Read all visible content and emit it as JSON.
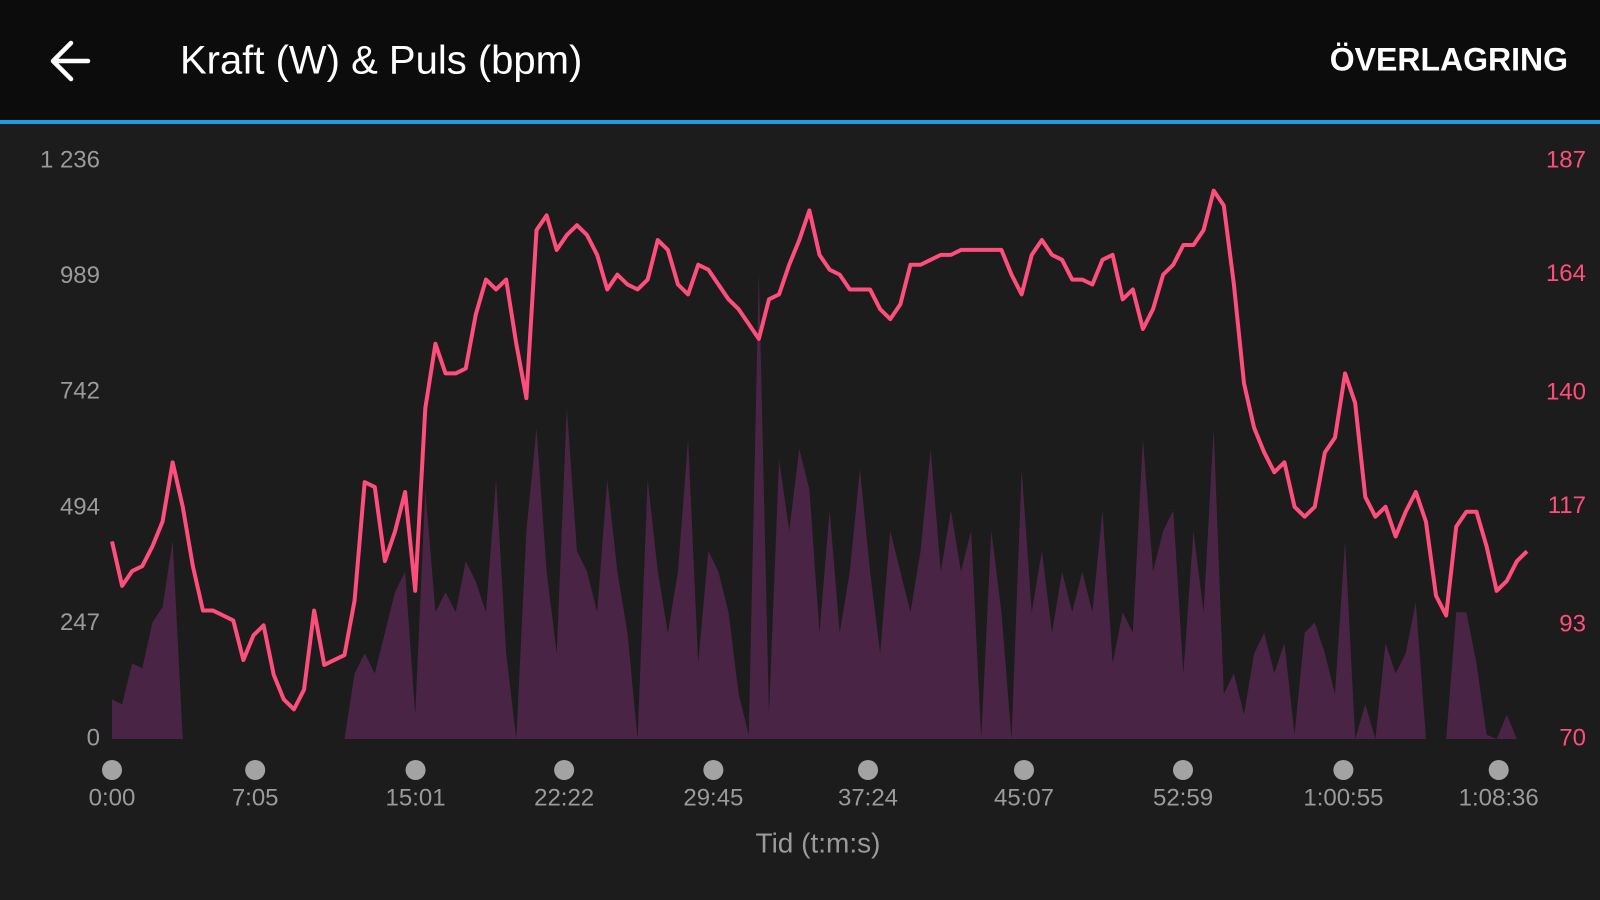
{
  "header": {
    "title": "Kraft (W) & Puls (bpm)",
    "action": "ÖVERLAGRING"
  },
  "chart_data": {
    "type": "line",
    "x_label": "Tid (t:m:s)",
    "x": [
      0,
      30,
      60,
      90,
      120,
      150,
      180,
      210,
      240,
      270,
      300,
      330,
      360,
      390,
      420,
      450,
      480,
      510,
      540,
      570,
      600,
      630,
      660,
      690,
      720,
      750,
      780,
      810,
      840,
      870,
      900,
      930,
      960,
      990,
      1020,
      1050,
      1080,
      1110,
      1140,
      1170,
      1200,
      1230,
      1260,
      1290,
      1320,
      1350,
      1380,
      1410,
      1440,
      1470,
      1500,
      1530,
      1560,
      1590,
      1620,
      1650,
      1680,
      1710,
      1740,
      1770,
      1800,
      1830,
      1860,
      1890,
      1920,
      1950,
      1980,
      2010,
      2040,
      2070,
      2100,
      2130,
      2160,
      2190,
      2220,
      2250,
      2280,
      2310,
      2340,
      2370,
      2400,
      2430,
      2460,
      2490,
      2520,
      2550,
      2580,
      2610,
      2640,
      2670,
      2700,
      2730,
      2760,
      2790,
      2820,
      2850,
      2880,
      2910,
      2940,
      2970,
      3000,
      3030,
      3060,
      3090,
      3120,
      3150,
      3180,
      3210,
      3240,
      3270,
      3300,
      3330,
      3360,
      3390,
      3420,
      3450,
      3480,
      3510,
      3540,
      3570,
      3600,
      3630,
      3660,
      3690,
      3720,
      3750,
      3780,
      3810,
      3840,
      3870,
      3900,
      3930,
      3960,
      3990,
      4020,
      4050,
      4080,
      4110,
      4140,
      4170,
      4200
    ],
    "xlim": [
      0,
      4200
    ],
    "xticks": [
      {
        "value": 0,
        "label": "0:00"
      },
      {
        "value": 425,
        "label": "7:05"
      },
      {
        "value": 901,
        "label": "15:01"
      },
      {
        "value": 1342,
        "label": "22:22"
      },
      {
        "value": 1785,
        "label": "29:45"
      },
      {
        "value": 2244,
        "label": "37:24"
      },
      {
        "value": 2707,
        "label": "45:07"
      },
      {
        "value": 3179,
        "label": "52:59"
      },
      {
        "value": 3655,
        "label": "1:00:55"
      },
      {
        "value": 4116,
        "label": "1:08:36"
      }
    ],
    "ylim": [
      0,
      1236
    ],
    "yticks": [
      0,
      247,
      494,
      742,
      989,
      {
        "value": 1236,
        "label": "1 236"
      }
    ],
    "y2lim": [
      70,
      187
    ],
    "y2ticks": [
      70,
      93,
      117,
      140,
      164,
      187
    ],
    "series": [
      {
        "type": "area",
        "color": "#4a2445",
        "values": [
          85,
          74,
          162,
          151,
          249,
          282,
          424,
          0,
          0,
          0,
          0,
          0,
          0,
          0,
          0,
          0,
          0,
          0,
          0,
          0,
          0,
          0,
          0,
          0,
          140,
          183,
          140,
          227,
          314,
          358,
          52,
          533,
          271,
          314,
          271,
          380,
          336,
          271,
          555,
          183,
          0,
          445,
          664,
          358,
          183,
          708,
          402,
          358,
          271,
          555,
          358,
          227,
          0,
          555,
          358,
          227,
          358,
          642,
          162,
          402,
          358,
          271,
          96,
          9,
          1000,
          52,
          598,
          445,
          620,
          533,
          227,
          489,
          227,
          358,
          577,
          358,
          183,
          445,
          358,
          271,
          402,
          620,
          358,
          489,
          358,
          445,
          0,
          445,
          271,
          0,
          577,
          271,
          402,
          227,
          358,
          271,
          358,
          271,
          489,
          162,
          271,
          227,
          642,
          358,
          445,
          489,
          140,
          445,
          271,
          664,
          96,
          140,
          52,
          183,
          227,
          140,
          205,
          9,
          227,
          249,
          183,
          96,
          424,
          0,
          74,
          0,
          205,
          140,
          183,
          293,
          0,
          0,
          0,
          271,
          271,
          162,
          9,
          0,
          52,
          0,
          0
        ]
      },
      {
        "type": "line",
        "axis": "y2",
        "color": "#ff4d7c",
        "values": [
          110,
          101,
          104,
          105,
          109,
          114,
          126,
          117,
          105,
          96,
          96,
          95,
          94,
          86,
          91,
          93,
          83,
          78,
          76,
          80,
          96,
          85,
          86,
          87,
          98,
          122,
          121,
          106,
          112,
          120,
          100,
          137,
          150,
          144,
          144,
          145,
          156,
          163,
          161,
          163,
          150,
          139,
          173,
          176,
          169,
          172,
          174,
          172,
          168,
          161,
          164,
          162,
          161,
          163,
          171,
          169,
          162,
          160,
          166,
          165,
          162,
          159,
          157,
          154,
          151,
          159,
          160,
          166,
          171,
          177,
          168,
          165,
          164,
          161,
          161,
          161,
          157,
          155,
          158,
          166,
          166,
          167,
          168,
          168,
          169,
          169,
          169,
          169,
          169,
          164,
          160,
          168,
          171,
          168,
          167,
          163,
          163,
          162,
          167,
          168,
          159,
          161,
          153,
          157,
          164,
          166,
          170,
          170,
          173,
          181,
          178,
          162,
          142,
          133,
          128,
          124,
          126,
          117,
          115,
          117,
          128,
          131,
          144,
          138,
          119,
          115,
          117,
          111,
          116,
          120,
          114,
          99,
          95,
          113,
          116,
          116,
          109,
          100,
          102,
          106,
          108
        ]
      }
    ]
  }
}
